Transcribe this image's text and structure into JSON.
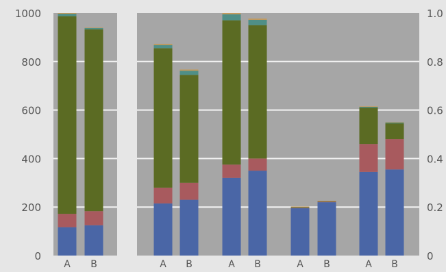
{
  "colors": {
    "background": "#e6e6e6",
    "plot_area": "#a6a6a6",
    "gridline": "#f4f4f4",
    "axis_text": "#555555"
  },
  "chart_data": [
    {
      "type": "bar",
      "stacked": true,
      "panel": "left",
      "categories": [
        "A",
        "B"
      ],
      "ylim": [
        0,
        1000
      ],
      "yticks": [
        "0",
        "200",
        "400",
        "600",
        "800",
        "1000"
      ],
      "axis_side": "left",
      "grid": true,
      "series": [
        {
          "color": "#4a66a6",
          "values": [
            117,
            125
          ]
        },
        {
          "color": "#a85a5e",
          "values": [
            55,
            58
          ]
        },
        {
          "color": "#5b6b23",
          "values": [
            815,
            750
          ]
        },
        {
          "color": "#4f8f87",
          "values": [
            10,
            5
          ]
        },
        {
          "color": "#c49a5a",
          "values": [
            3,
            2
          ]
        }
      ]
    },
    {
      "type": "bar",
      "stacked": true,
      "panel": "right",
      "groups": [
        {
          "categories": [
            "A",
            "B"
          ]
        },
        {
          "categories": [
            "A",
            "B"
          ]
        },
        {
          "categories": [
            "A",
            "B"
          ]
        },
        {
          "categories": [
            "A",
            "B"
          ]
        }
      ],
      "ylim": [
        0,
        1.0
      ],
      "yticks": [
        "0",
        "0.2",
        "0.4",
        "0.6",
        "0.8",
        "1.0"
      ],
      "axis_side": "right",
      "grid": true,
      "series": [
        {
          "color": "#4a66a6",
          "values": [
            0.215,
            0.23,
            0.32,
            0.35,
            0.195,
            0.22,
            0.345,
            0.355
          ]
        },
        {
          "color": "#a85a5e",
          "values": [
            0.065,
            0.07,
            0.055,
            0.05,
            0.002,
            0.002,
            0.115,
            0.125
          ]
        },
        {
          "color": "#5b6b23",
          "values": [
            0.575,
            0.445,
            0.595,
            0.55,
            0.003,
            0.002,
            0.15,
            0.065
          ]
        },
        {
          "color": "#4f8f87",
          "values": [
            0.013,
            0.017,
            0.025,
            0.022,
            0,
            0,
            0.003,
            0.004
          ]
        },
        {
          "color": "#c49a5a",
          "values": [
            0.005,
            0.005,
            0.005,
            0.005,
            0.002,
            0.002,
            0.002,
            0.002
          ]
        }
      ]
    }
  ]
}
